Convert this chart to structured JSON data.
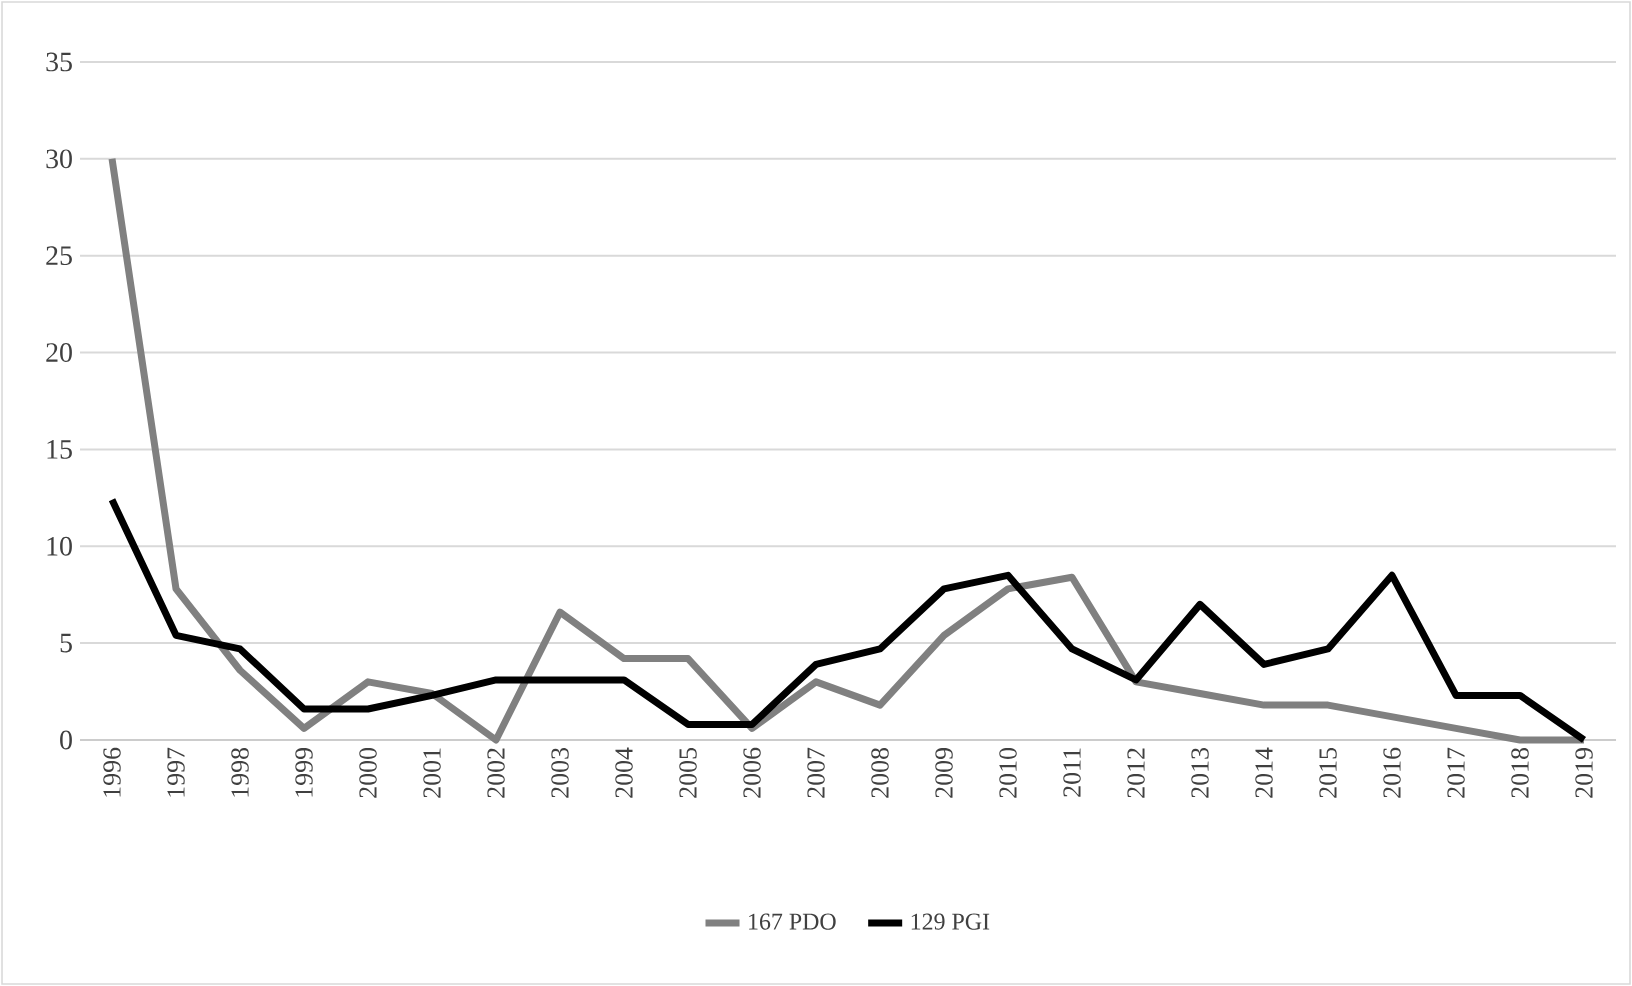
{
  "chart_data": {
    "type": "line",
    "categories": [
      "1996",
      "1997",
      "1998",
      "1999",
      "2000",
      "2001",
      "2002",
      "2003",
      "2004",
      "2005",
      "2006",
      "2007",
      "2008",
      "2009",
      "2010",
      "2011",
      "2012",
      "2013",
      "2014",
      "2015",
      "2016",
      "2017",
      "2018",
      "2019"
    ],
    "series": [
      {
        "name": "167 PDO",
        "color": "#808080",
        "values": [
          30,
          7.8,
          3.6,
          0.6,
          3.0,
          2.4,
          0,
          6.6,
          4.2,
          4.2,
          0.6,
          3.0,
          1.8,
          5.4,
          7.8,
          8.4,
          3.0,
          2.4,
          1.8,
          1.8,
          1.2,
          0.6,
          0,
          0
        ]
      },
      {
        "name": "129 PGI",
        "color": "#000000",
        "values": [
          12.4,
          5.4,
          4.7,
          1.6,
          1.6,
          2.3,
          3.1,
          3.1,
          3.1,
          0.8,
          0.8,
          3.9,
          4.7,
          7.8,
          8.5,
          4.7,
          3.1,
          7.0,
          3.9,
          4.7,
          8.5,
          2.3,
          2.3,
          0
        ]
      }
    ],
    "ylim": [
      0,
      35
    ],
    "yticks": [
      0,
      5,
      10,
      15,
      20,
      25,
      30,
      35
    ],
    "grid": "y",
    "legend": "bottom"
  }
}
